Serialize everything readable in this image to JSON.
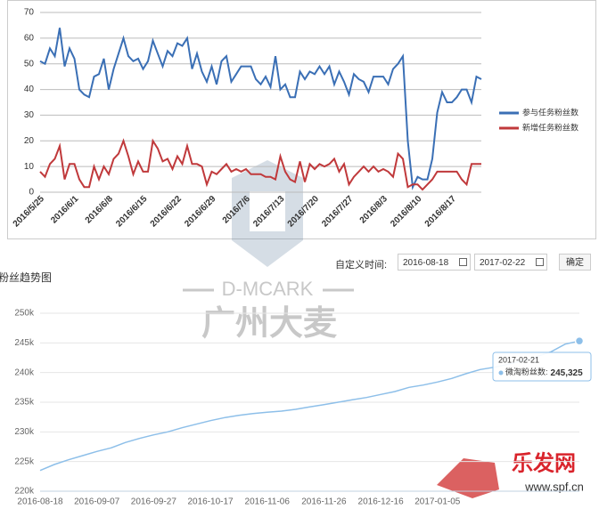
{
  "chart_data": [
    {
      "type": "line",
      "categories": [
        "2016/5/25",
        null,
        null,
        null,
        null,
        null,
        null,
        "2016/6/1",
        null,
        null,
        null,
        null,
        null,
        null,
        "2016/6/8",
        null,
        null,
        null,
        null,
        null,
        null,
        "2016/6/15",
        null,
        null,
        null,
        null,
        null,
        null,
        "2016/6/22",
        null,
        null,
        null,
        null,
        null,
        null,
        "2016/6/29",
        null,
        null,
        null,
        null,
        null,
        null,
        "2016/7/6",
        null,
        null,
        null,
        null,
        null,
        null,
        "2016/7/13",
        null,
        null,
        null,
        null,
        null,
        null,
        "2016/7/20",
        null,
        null,
        null,
        null,
        null,
        null,
        "2016/7/27",
        null,
        null,
        null,
        null,
        null,
        null,
        "2016/8/3",
        null,
        null,
        null,
        null,
        null,
        null,
        "2016/8/10",
        null,
        null,
        null,
        null,
        null,
        null,
        "2016/8/17",
        null,
        null,
        null,
        null,
        null,
        null
      ],
      "series": [
        {
          "name": "参与任务粉丝数",
          "color": "#3a6fb5",
          "values": [
            51,
            50,
            56,
            53,
            64,
            49,
            56,
            52,
            40,
            38,
            37,
            45,
            46,
            52,
            40,
            48,
            54,
            60,
            53,
            51,
            52,
            48,
            51,
            59,
            54,
            49,
            55,
            53,
            58,
            57,
            60,
            48,
            54,
            47,
            43,
            49,
            42,
            51,
            53,
            43,
            46,
            49,
            49,
            49,
            44,
            42,
            45,
            41,
            53,
            40,
            42,
            37,
            37,
            47,
            44,
            47,
            46,
            49,
            46,
            49,
            42,
            47,
            43,
            38,
            46,
            44,
            43,
            39,
            45,
            45,
            45,
            42,
            48,
            50,
            53,
            20,
            2,
            6,
            5,
            5,
            13,
            31,
            39,
            35,
            35,
            37,
            40,
            40,
            35,
            45,
            44
          ]
        },
        {
          "name": "新增任务粉丝数",
          "color": "#c0393b",
          "values": [
            8,
            6,
            11,
            13,
            18,
            5,
            11,
            11,
            5,
            2,
            2,
            10,
            5,
            10,
            7,
            13,
            15,
            20,
            14,
            7,
            12,
            8,
            8,
            20,
            17,
            12,
            13,
            9,
            14,
            11,
            18,
            11,
            11,
            10,
            3,
            8,
            7,
            9,
            11,
            8,
            9,
            8,
            9,
            7,
            7,
            7,
            6,
            6,
            5,
            14,
            8,
            5,
            4,
            12,
            4,
            11,
            9,
            11,
            10,
            11,
            13,
            8,
            11,
            3,
            6,
            8,
            10,
            8,
            10,
            8,
            9,
            8,
            6,
            15,
            13,
            2,
            3,
            3,
            1,
            3,
            5,
            8,
            8,
            8,
            8,
            8,
            5,
            3,
            11,
            11,
            11
          ]
        }
      ],
      "ylim": [
        0,
        70
      ],
      "yticks": [
        0,
        10,
        20,
        30,
        40,
        50,
        60,
        70
      ],
      "grid": true,
      "legend": "right"
    },
    {
      "type": "line",
      "categories": [
        "2016-08-18",
        null,
        null,
        null,
        "2016-09-07",
        null,
        null,
        null,
        "2016-09-27",
        null,
        null,
        null,
        "2016-10-17",
        null,
        null,
        null,
        "2016-11-06",
        null,
        null,
        null,
        "2016-11-26",
        null,
        null,
        null,
        "2016-12-16",
        null,
        null,
        null,
        "2017-01-05",
        null,
        null,
        null,
        null,
        null,
        null,
        null,
        null,
        null,
        null
      ],
      "series": [
        {
          "name": "微淘粉丝数",
          "color": "#8dbfe9",
          "values": [
            223500,
            224500,
            225300,
            226000,
            226700,
            227300,
            228200,
            228900,
            229500,
            230000,
            230700,
            231300,
            231900,
            232400,
            232800,
            233100,
            233300,
            233500,
            233800,
            234200,
            234600,
            235000,
            235400,
            235800,
            236300,
            236800,
            237500,
            237900,
            238400,
            239000,
            239800,
            240500,
            240900,
            241400,
            242000,
            242700,
            243500,
            244800,
            245325
          ]
        }
      ],
      "ylim": [
        220000,
        250000
      ],
      "yticks": [
        {
          "value": 220000,
          "label": "220k"
        },
        {
          "value": 225000,
          "label": "225k"
        },
        {
          "value": 230000,
          "label": "230k"
        },
        {
          "value": 235000,
          "label": "235k"
        },
        {
          "value": 240000,
          "label": "240k"
        },
        {
          "value": 245000,
          "label": "245k"
        },
        {
          "value": 250000,
          "label": "250k"
        }
      ],
      "grid": true,
      "tooltip": {
        "date": "2017-02-21",
        "name": "微淘粉丝数:",
        "value": "245,325"
      }
    }
  ],
  "toolbar": {
    "label": "自定义时间:",
    "start": "2016-08-18",
    "end": "2017-02-22",
    "button": "确定"
  },
  "section_title": "粉丝趋势图",
  "watermarks": [
    "D-MCARK",
    "广州大麦",
    "乐发网",
    "www.spf.cn"
  ]
}
